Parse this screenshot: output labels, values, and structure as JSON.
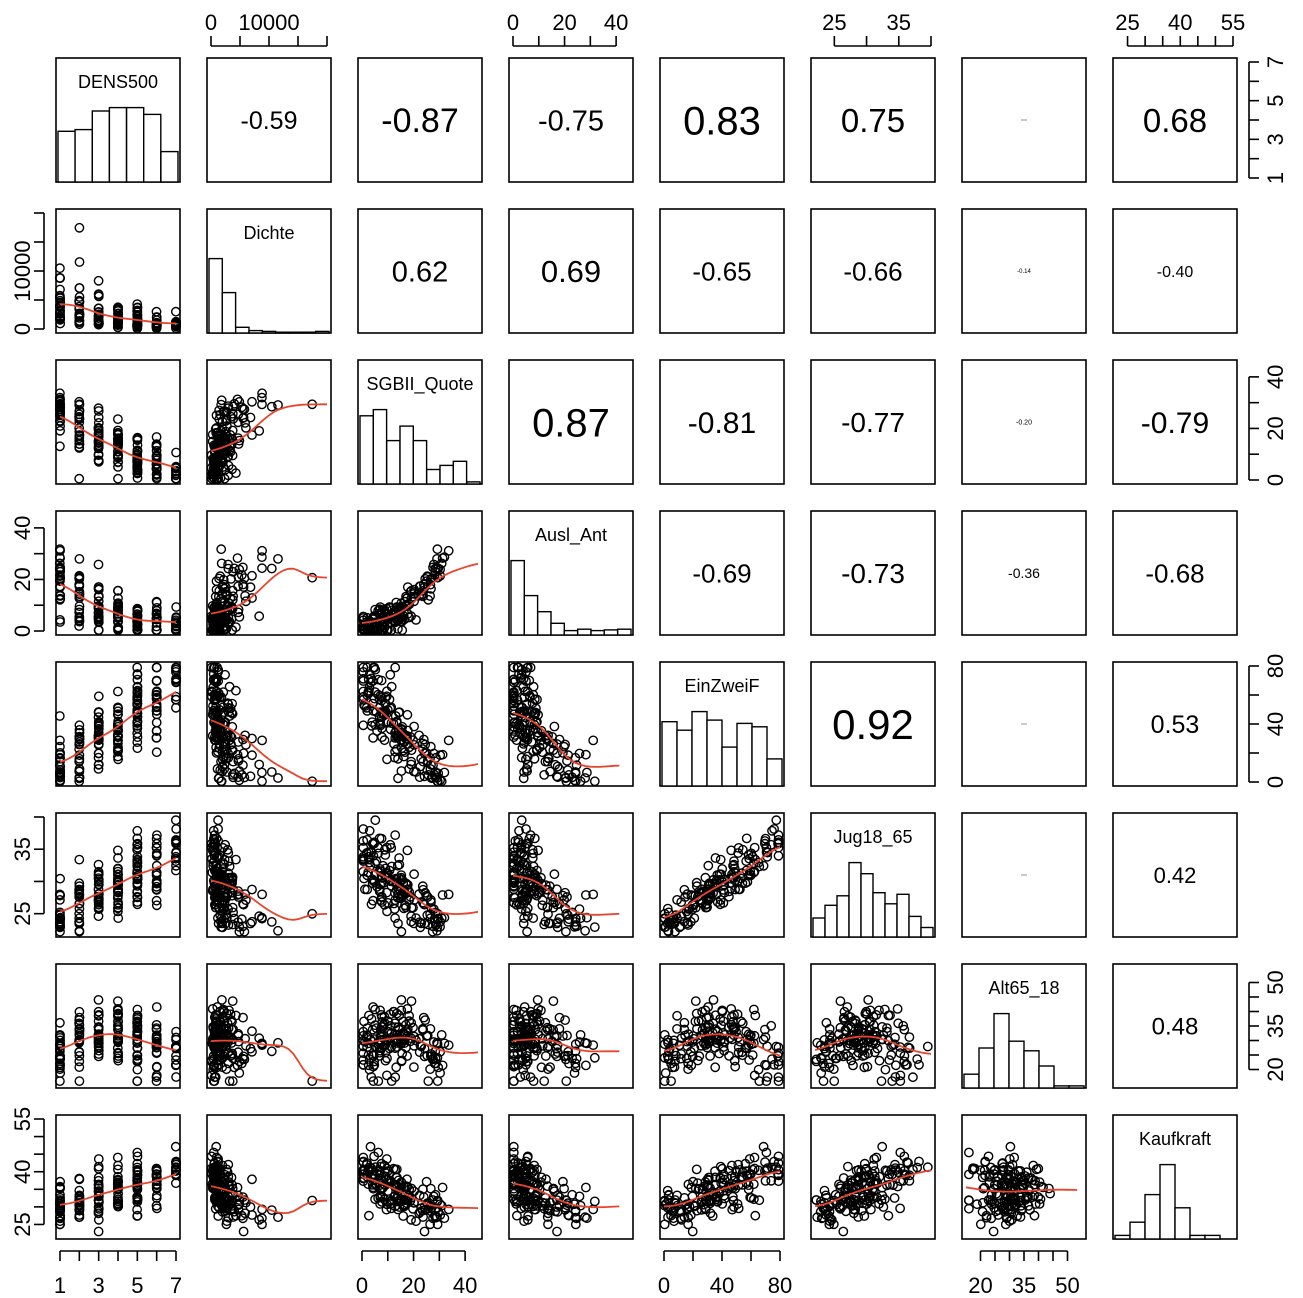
{
  "chart_data": {
    "type": "scatter-matrix",
    "variables": [
      {
        "name": "DENS500",
        "range": [
          1,
          7
        ],
        "ticks": [
          "1",
          "3",
          "5",
          "7"
        ],
        "tick_values": [
          1,
          3,
          5,
          7
        ],
        "axis_ticks": [
          1,
          2,
          3,
          4,
          5,
          6,
          7
        ],
        "hist": [
          3.0,
          3.1,
          4.2,
          4.4,
          4.4,
          4.0,
          1.8
        ]
      },
      {
        "name": "Dichte",
        "range": [
          0,
          20000
        ],
        "ticks": [
          "0",
          "10000"
        ],
        "tick_values": [
          0,
          10000
        ],
        "axis_ticks": [
          0,
          5000,
          10000,
          15000,
          20000
        ],
        "hist": [
          4.6,
          2.5,
          0.35,
          0.15,
          0.1,
          0.05,
          0.05,
          0.05,
          0.1
        ]
      },
      {
        "name": "SGBII_Quote",
        "range": [
          0,
          45
        ],
        "ticks": [
          "0",
          "20",
          "40"
        ],
        "tick_values": [
          0,
          20,
          40
        ],
        "axis_ticks": [
          0,
          10,
          20,
          30,
          40
        ],
        "hist": [
          3.3,
          3.6,
          2.1,
          2.8,
          2.1,
          0.7,
          0.9,
          1.1,
          0.1
        ]
      },
      {
        "name": "Ausl_Ant",
        "range": [
          0,
          45
        ],
        "ticks": [
          "0",
          "20",
          "40"
        ],
        "tick_values": [
          0,
          20,
          40
        ],
        "axis_ticks": [
          0,
          10,
          20,
          30,
          40
        ],
        "hist": [
          5.1,
          2.7,
          1.6,
          0.8,
          0.3,
          0.4,
          0.3,
          0.35,
          0.4
        ]
      },
      {
        "name": "EinZweiF",
        "range": [
          0,
          80
        ],
        "ticks": [
          "0",
          "40",
          "80"
        ],
        "tick_values": [
          0,
          40,
          80
        ],
        "axis_ticks": [
          0,
          20,
          40,
          60,
          80
        ],
        "hist": [
          3.8,
          3.3,
          4.4,
          3.9,
          2.3,
          3.7,
          3.5,
          1.6
        ]
      },
      {
        "name": "Jug18_65",
        "range": [
          22,
          40
        ],
        "ticks": [
          "25",
          "35"
        ],
        "tick_values": [
          25,
          35
        ],
        "axis_ticks": [
          25,
          30,
          35,
          40
        ],
        "hist": [
          1.2,
          2.0,
          2.6,
          4.7,
          4.0,
          2.8,
          2.1,
          2.7,
          1.3,
          0.6
        ]
      },
      {
        "name": "Alt65_18",
        "range": [
          15,
          55
        ],
        "ticks": [
          "20",
          "35",
          "50"
        ],
        "tick_values": [
          20,
          35,
          50
        ],
        "axis_ticks": [
          20,
          25,
          30,
          35,
          40,
          45,
          50
        ],
        "hist": [
          1.0,
          2.9,
          5.4,
          3.4,
          2.7,
          1.6,
          0.15,
          0.15
        ]
      },
      {
        "name": "Kaufkraft",
        "range": [
          22,
          55
        ],
        "ticks": [
          "25",
          "40",
          "55"
        ],
        "tick_values": [
          25,
          40,
          55
        ],
        "axis_ticks": [
          25,
          30,
          35,
          40,
          45,
          50,
          55
        ],
        "hist": [
          0.3,
          1.4,
          3.7,
          6.2,
          2.6,
          0.3,
          0.3,
          0.0
        ]
      }
    ],
    "correlations": [
      {
        "row": 0,
        "col": 1,
        "value": "-0.59",
        "size": 25
      },
      {
        "row": 0,
        "col": 2,
        "value": "-0.87",
        "size": 34
      },
      {
        "row": 0,
        "col": 3,
        "value": "-0.75",
        "size": 29
      },
      {
        "row": 0,
        "col": 4,
        "value": "0.83",
        "size": 40
      },
      {
        "row": 0,
        "col": 5,
        "value": "0.75",
        "size": 33
      },
      {
        "row": 0,
        "col": 6,
        "value": "",
        "size": 2
      },
      {
        "row": 0,
        "col": 7,
        "value": "0.68",
        "size": 33
      },
      {
        "row": 1,
        "col": 2,
        "value": "0.62",
        "size": 29
      },
      {
        "row": 1,
        "col": 3,
        "value": "0.69",
        "size": 31
      },
      {
        "row": 1,
        "col": 4,
        "value": "-0.65",
        "size": 26
      },
      {
        "row": 1,
        "col": 5,
        "value": "-0.66",
        "size": 26
      },
      {
        "row": 1,
        "col": 6,
        "value": "-0.14",
        "size": 6
      },
      {
        "row": 1,
        "col": 7,
        "value": "-0.40",
        "size": 16
      },
      {
        "row": 2,
        "col": 3,
        "value": "0.87",
        "size": 40
      },
      {
        "row": 2,
        "col": 4,
        "value": "-0.81",
        "size": 30
      },
      {
        "row": 2,
        "col": 5,
        "value": "-0.77",
        "size": 28
      },
      {
        "row": 2,
        "col": 6,
        "value": "-0.20",
        "size": 7
      },
      {
        "row": 2,
        "col": 7,
        "value": "-0.79",
        "size": 30
      },
      {
        "row": 3,
        "col": 4,
        "value": "-0.69",
        "size": 26
      },
      {
        "row": 3,
        "col": 5,
        "value": "-0.73",
        "size": 28
      },
      {
        "row": 3,
        "col": 6,
        "value": "-0.36",
        "size": 14
      },
      {
        "row": 3,
        "col": 7,
        "value": "-0.68",
        "size": 26
      },
      {
        "row": 4,
        "col": 5,
        "value": "0.92",
        "size": 42
      },
      {
        "row": 4,
        "col": 6,
        "value": "",
        "size": 2
      },
      {
        "row": 4,
        "col": 7,
        "value": "0.53",
        "size": 25
      },
      {
        "row": 5,
        "col": 6,
        "value": "",
        "size": 2
      },
      {
        "row": 5,
        "col": 7,
        "value": "0.42",
        "size": 22
      },
      {
        "row": 6,
        "col": 7,
        "value": "0.48",
        "size": 24
      }
    ],
    "colors": {
      "points": "#000000",
      "smoother": "#e8452c",
      "frame": "#000000"
    },
    "axes": {
      "top": [
        1,
        3,
        5,
        7
      ],
      "bottom": [
        0,
        2,
        4,
        6
      ],
      "left": [
        1,
        3,
        5,
        7
      ],
      "right": [
        0,
        2,
        4,
        6
      ]
    }
  }
}
